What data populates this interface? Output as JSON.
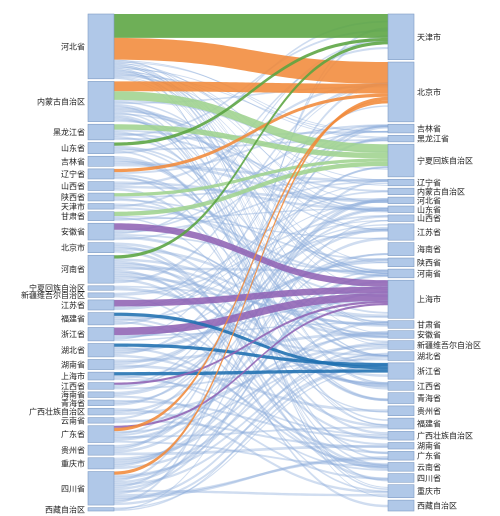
{
  "chart_data": {
    "type": "sankey",
    "colors": {
      "node_fill": "#b0c8e8",
      "node_stroke": "#7f9cc4",
      "link_default": "#8eaedc",
      "green": "#5aa440",
      "orange": "#f18a3a",
      "lightgreen": "#9fd38e",
      "purple": "#8f63b4",
      "blue": "#1f6fb0"
    },
    "left_nodes": [
      {
        "label": "河北省",
        "value": 58
      },
      {
        "label": "内蒙古自治区",
        "value": 36
      },
      {
        "label": "黑龙江省",
        "value": 14
      },
      {
        "label": "山东省",
        "value": 10
      },
      {
        "label": "吉林省",
        "value": 9
      },
      {
        "label": "辽宁省",
        "value": 9
      },
      {
        "label": "山西省",
        "value": 8
      },
      {
        "label": "陕西省",
        "value": 7
      },
      {
        "label": "天津市",
        "value": 5
      },
      {
        "label": "甘肃省",
        "value": 8
      },
      {
        "label": "安徽省",
        "value": 15
      },
      {
        "label": "北京市",
        "value": 9
      },
      {
        "label": "河南省",
        "value": 25
      },
      {
        "label": "宁夏回族自治区",
        "value": 4
      },
      {
        "label": "新疆维吾尔自治区",
        "value": 4
      },
      {
        "label": "江苏省",
        "value": 9
      },
      {
        "label": "福建省",
        "value": 11
      },
      {
        "label": "浙江省",
        "value": 12
      },
      {
        "label": "湖北省",
        "value": 12
      },
      {
        "label": "湖南省",
        "value": 9
      },
      {
        "label": "上海市",
        "value": 7
      },
      {
        "label": "江西省",
        "value": 6
      },
      {
        "label": "海南省",
        "value": 5
      },
      {
        "label": "青海省",
        "value": 5
      },
      {
        "label": "广西壮族自治区",
        "value": 6
      },
      {
        "label": "云南省",
        "value": 5
      },
      {
        "label": "广东省",
        "value": 15
      },
      {
        "label": "贵州省",
        "value": 9
      },
      {
        "label": "重庆市",
        "value": 10
      },
      {
        "label": "四川省",
        "value": 30
      },
      {
        "label": "西藏自治区",
        "value": 3
      }
    ],
    "right_nodes": [
      {
        "label": "天津市",
        "value": 42
      },
      {
        "label": "北京市",
        "value": 55
      },
      {
        "label": "吉林省",
        "value": 8
      },
      {
        "label": "黑龙江省",
        "value": 6
      },
      {
        "label": "宁夏回族自治区",
        "value": 30
      },
      {
        "label": "辽宁省",
        "value": 6
      },
      {
        "label": "内蒙古自治区",
        "value": 6
      },
      {
        "label": "河北省",
        "value": 6
      },
      {
        "label": "山东省",
        "value": 6
      },
      {
        "label": "山西省",
        "value": 6
      },
      {
        "label": "江苏省",
        "value": 15
      },
      {
        "label": "海南省",
        "value": 12
      },
      {
        "label": "陕西省",
        "value": 8
      },
      {
        "label": "河南省",
        "value": 8
      },
      {
        "label": "上海市",
        "value": 35
      },
      {
        "label": "甘肃省",
        "value": 7
      },
      {
        "label": "安徽省",
        "value": 7
      },
      {
        "label": "新疆维吾尔自治区",
        "value": 8
      },
      {
        "label": "湖北省",
        "value": 8
      },
      {
        "label": "浙江省",
        "value": 15
      },
      {
        "label": "江西省",
        "value": 8
      },
      {
        "label": "青海省",
        "value": 10
      },
      {
        "label": "贵州省",
        "value": 9
      },
      {
        "label": "福建省",
        "value": 10
      },
      {
        "label": "广西壮族自治区",
        "value": 8
      },
      {
        "label": "湖南省",
        "value": 6
      },
      {
        "label": "广东省",
        "value": 8
      },
      {
        "label": "云南省",
        "value": 8
      },
      {
        "label": "四川省",
        "value": 8
      },
      {
        "label": "重庆市",
        "value": 12
      },
      {
        "label": "西藏自治区",
        "value": 10
      }
    ],
    "highlight_links": [
      {
        "source": "河北省",
        "target": "天津市",
        "value": 22,
        "color": "green"
      },
      {
        "source": "河北省",
        "target": "北京市",
        "value": 20,
        "color": "orange"
      },
      {
        "source": "内蒙古自治区",
        "target": "北京市",
        "value": 9,
        "color": "orange"
      },
      {
        "source": "内蒙古自治区",
        "target": "宁夏回族自治区",
        "value": 8,
        "color": "lightgreen"
      },
      {
        "source": "黑龙江省",
        "target": "宁夏回族自治区",
        "value": 5,
        "color": "lightgreen"
      },
      {
        "source": "山东省",
        "target": "天津市",
        "value": 3,
        "color": "green"
      },
      {
        "source": "辽宁省",
        "target": "北京市",
        "value": 3,
        "color": "orange"
      },
      {
        "source": "陕西省",
        "target": "宁夏回族自治区",
        "value": 3,
        "color": "lightgreen"
      },
      {
        "source": "甘肃省",
        "target": "宁夏回族自治区",
        "value": 4,
        "color": "lightgreen"
      },
      {
        "source": "安徽省",
        "target": "上海市",
        "value": 6,
        "color": "purple"
      },
      {
        "source": "河南省",
        "target": "天津市",
        "value": 3,
        "color": "green"
      },
      {
        "source": "江苏省",
        "target": "上海市",
        "value": 6,
        "color": "purple"
      },
      {
        "source": "浙江省",
        "target": "上海市",
        "value": 7,
        "color": "purple"
      },
      {
        "source": "湖北省",
        "target": "浙江省",
        "value": 3,
        "color": "blue"
      },
      {
        "source": "福建省",
        "target": "浙江省",
        "value": 3,
        "color": "blue"
      },
      {
        "source": "上海市",
        "target": "浙江省",
        "value": 3,
        "color": "blue"
      },
      {
        "source": "江西省",
        "target": "上海市",
        "value": 2,
        "color": "purple"
      },
      {
        "source": "广东省",
        "target": "上海市",
        "value": 2,
        "color": "purple"
      },
      {
        "source": "四川省",
        "target": "北京市",
        "value": 3,
        "color": "orange"
      },
      {
        "source": "广东省",
        "target": "北京市",
        "value": 3,
        "color": "orange"
      }
    ]
  }
}
